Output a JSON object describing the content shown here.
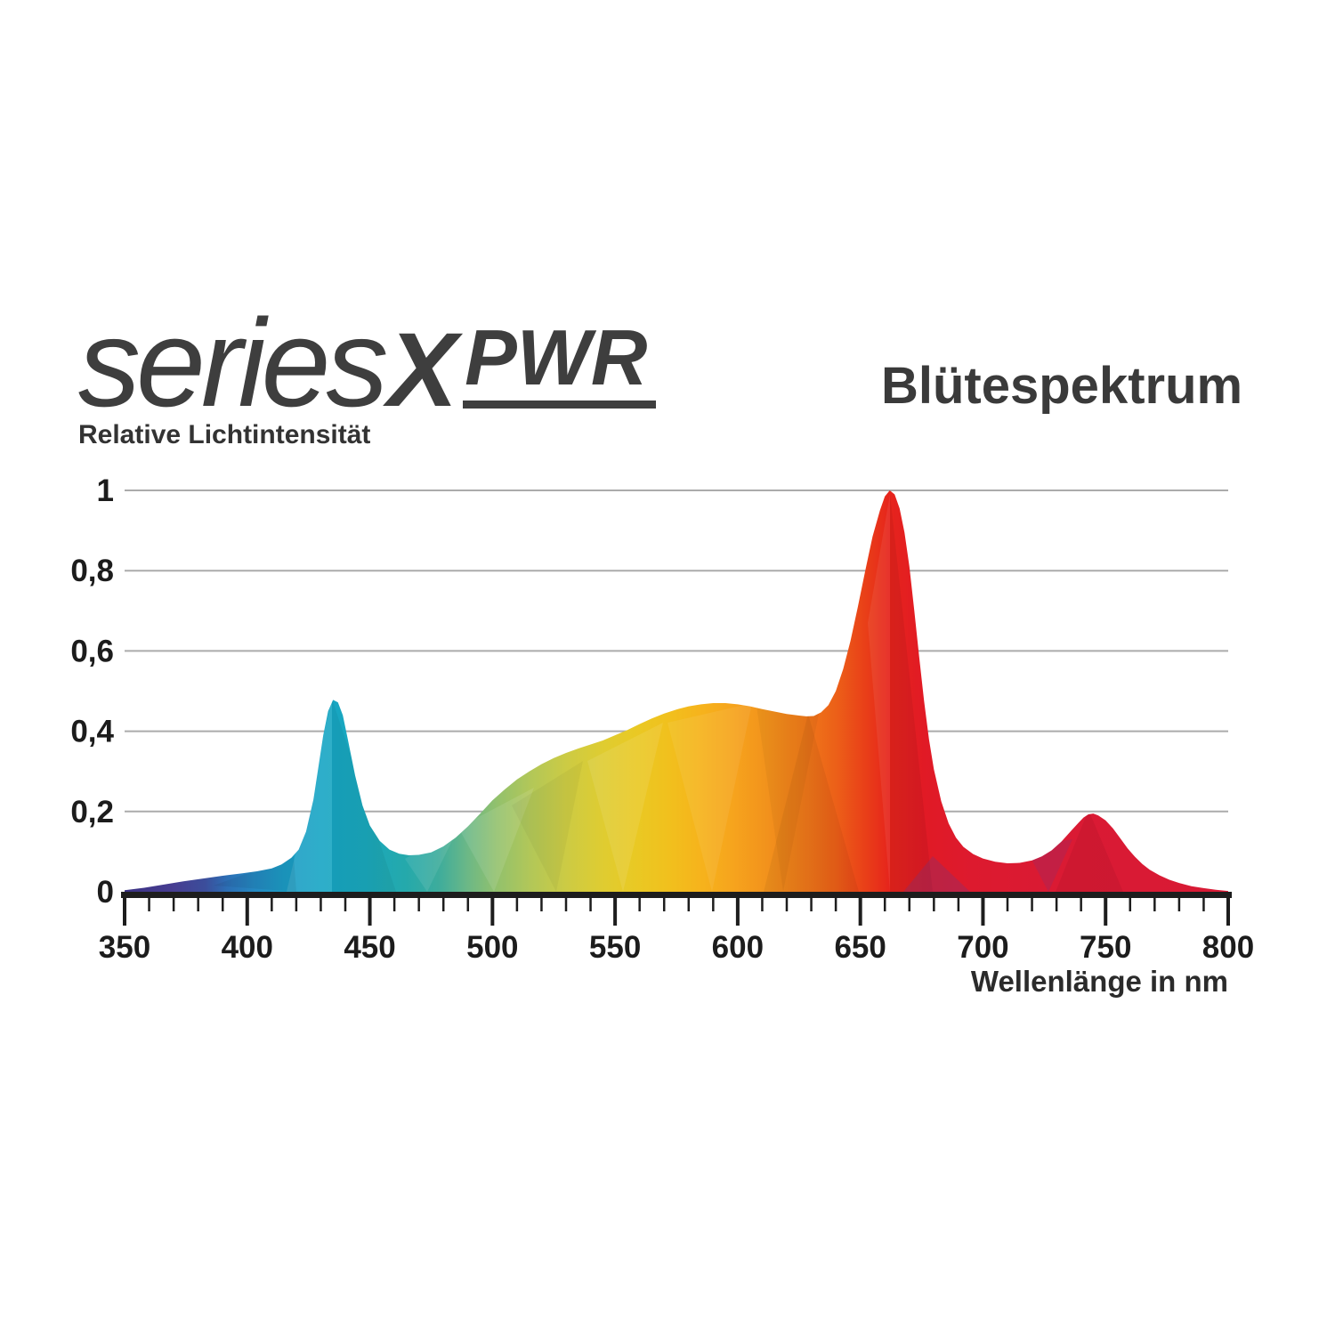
{
  "logo": {
    "series": "series",
    "x": "X",
    "pwr": "PWR"
  },
  "title": "Blütespektrum",
  "chart_data": {
    "type": "area",
    "title": "Blütespektrum",
    "xlabel": "Wellenlänge in nm",
    "ylabel": "Relative Lichtintensität",
    "xlim": [
      350,
      800
    ],
    "ylim": [
      0,
      1
    ],
    "grid": "horizontal-only",
    "legend": "none",
    "x_major_ticks": [
      350,
      400,
      450,
      500,
      550,
      600,
      650,
      700,
      750,
      800
    ],
    "x_minor_step": 10,
    "y_ticks": [
      {
        "v": 0,
        "label": "0"
      },
      {
        "v": 0.2,
        "label": "0,2"
      },
      {
        "v": 0.4,
        "label": "0,4"
      },
      {
        "v": 0.6,
        "label": "0,6"
      },
      {
        "v": 0.8,
        "label": "0,8"
      },
      {
        "v": 1,
        "label": "1"
      }
    ],
    "series": [
      {
        "name": "Blütespektrum relative Lichtintensität",
        "points": [
          [
            350,
            0.004
          ],
          [
            358,
            0.01
          ],
          [
            366,
            0.018
          ],
          [
            374,
            0.026
          ],
          [
            382,
            0.033
          ],
          [
            390,
            0.04
          ],
          [
            398,
            0.046
          ],
          [
            404,
            0.051
          ],
          [
            410,
            0.058
          ],
          [
            414,
            0.068
          ],
          [
            418,
            0.085
          ],
          [
            421,
            0.105
          ],
          [
            424,
            0.15
          ],
          [
            427,
            0.23
          ],
          [
            429,
            0.31
          ],
          [
            431,
            0.39
          ],
          [
            433,
            0.45
          ],
          [
            435,
            0.478
          ],
          [
            437,
            0.472
          ],
          [
            439,
            0.44
          ],
          [
            441,
            0.38
          ],
          [
            444,
            0.29
          ],
          [
            447,
            0.215
          ],
          [
            450,
            0.165
          ],
          [
            454,
            0.127
          ],
          [
            458,
            0.105
          ],
          [
            462,
            0.095
          ],
          [
            466,
            0.091
          ],
          [
            470,
            0.092
          ],
          [
            475,
            0.098
          ],
          [
            480,
            0.113
          ],
          [
            485,
            0.135
          ],
          [
            490,
            0.163
          ],
          [
            495,
            0.195
          ],
          [
            500,
            0.228
          ],
          [
            505,
            0.255
          ],
          [
            510,
            0.28
          ],
          [
            515,
            0.3
          ],
          [
            520,
            0.318
          ],
          [
            525,
            0.333
          ],
          [
            530,
            0.346
          ],
          [
            535,
            0.357
          ],
          [
            540,
            0.367
          ],
          [
            545,
            0.377
          ],
          [
            550,
            0.39
          ],
          [
            555,
            0.403
          ],
          [
            560,
            0.418
          ],
          [
            565,
            0.432
          ],
          [
            570,
            0.444
          ],
          [
            575,
            0.454
          ],
          [
            580,
            0.462
          ],
          [
            585,
            0.467
          ],
          [
            590,
            0.47
          ],
          [
            595,
            0.47
          ],
          [
            600,
            0.467
          ],
          [
            605,
            0.462
          ],
          [
            610,
            0.455
          ],
          [
            615,
            0.449
          ],
          [
            620,
            0.443
          ],
          [
            625,
            0.439
          ],
          [
            628,
            0.437
          ],
          [
            631,
            0.438
          ],
          [
            634,
            0.447
          ],
          [
            637,
            0.465
          ],
          [
            640,
            0.5
          ],
          [
            643,
            0.555
          ],
          [
            646,
            0.625
          ],
          [
            649,
            0.71
          ],
          [
            652,
            0.8
          ],
          [
            655,
            0.885
          ],
          [
            658,
            0.95
          ],
          [
            660,
            0.985
          ],
          [
            662,
            1.0
          ],
          [
            664,
            0.99
          ],
          [
            666,
            0.955
          ],
          [
            668,
            0.895
          ],
          [
            670,
            0.81
          ],
          [
            672,
            0.7
          ],
          [
            674,
            0.585
          ],
          [
            676,
            0.475
          ],
          [
            678,
            0.38
          ],
          [
            680,
            0.305
          ],
          [
            683,
            0.225
          ],
          [
            686,
            0.17
          ],
          [
            689,
            0.135
          ],
          [
            692,
            0.112
          ],
          [
            696,
            0.094
          ],
          [
            700,
            0.083
          ],
          [
            705,
            0.075
          ],
          [
            710,
            0.071
          ],
          [
            715,
            0.072
          ],
          [
            720,
            0.078
          ],
          [
            724,
            0.088
          ],
          [
            728,
            0.103
          ],
          [
            732,
            0.125
          ],
          [
            736,
            0.152
          ],
          [
            739,
            0.172
          ],
          [
            741,
            0.185
          ],
          [
            743,
            0.193
          ],
          [
            745,
            0.195
          ],
          [
            747,
            0.19
          ],
          [
            750,
            0.178
          ],
          [
            753,
            0.158
          ],
          [
            756,
            0.133
          ],
          [
            759,
            0.108
          ],
          [
            762,
            0.087
          ],
          [
            765,
            0.069
          ],
          [
            768,
            0.055
          ],
          [
            772,
            0.041
          ],
          [
            776,
            0.03
          ],
          [
            780,
            0.022
          ],
          [
            785,
            0.014
          ],
          [
            790,
            0.009
          ],
          [
            795,
            0.005
          ],
          [
            800,
            0.002
          ]
        ]
      }
    ],
    "gradient_stops": [
      [
        350,
        "#3a3183"
      ],
      [
        370,
        "#473d91"
      ],
      [
        383,
        "#3b4e9b"
      ],
      [
        392,
        "#2c6fb5"
      ],
      [
        403,
        "#2488c1"
      ],
      [
        415,
        "#1c9cc5"
      ],
      [
        430,
        "#17a5c4"
      ],
      [
        448,
        "#1aa8bc"
      ],
      [
        465,
        "#25a9ab"
      ],
      [
        478,
        "#3dac9c"
      ],
      [
        490,
        "#6cb886"
      ],
      [
        502,
        "#93c16c"
      ],
      [
        515,
        "#b1c759"
      ],
      [
        530,
        "#cccb44"
      ],
      [
        545,
        "#dfcc31"
      ],
      [
        558,
        "#e9c924"
      ],
      [
        572,
        "#f1c01d"
      ],
      [
        585,
        "#f6b31c"
      ],
      [
        598,
        "#f6a41d"
      ],
      [
        612,
        "#f2921c"
      ],
      [
        626,
        "#ef7b1a"
      ],
      [
        640,
        "#ec6018"
      ],
      [
        652,
        "#e93f18"
      ],
      [
        662,
        "#e6241c"
      ],
      [
        676,
        "#e11a25"
      ],
      [
        695,
        "#dd1a2e"
      ],
      [
        725,
        "#da1a33"
      ],
      [
        800,
        "#d81a35"
      ]
    ],
    "colors": {
      "grid": "#ababab",
      "axis": "#1d1d1d",
      "tick_text": "#1c1c1c"
    }
  }
}
